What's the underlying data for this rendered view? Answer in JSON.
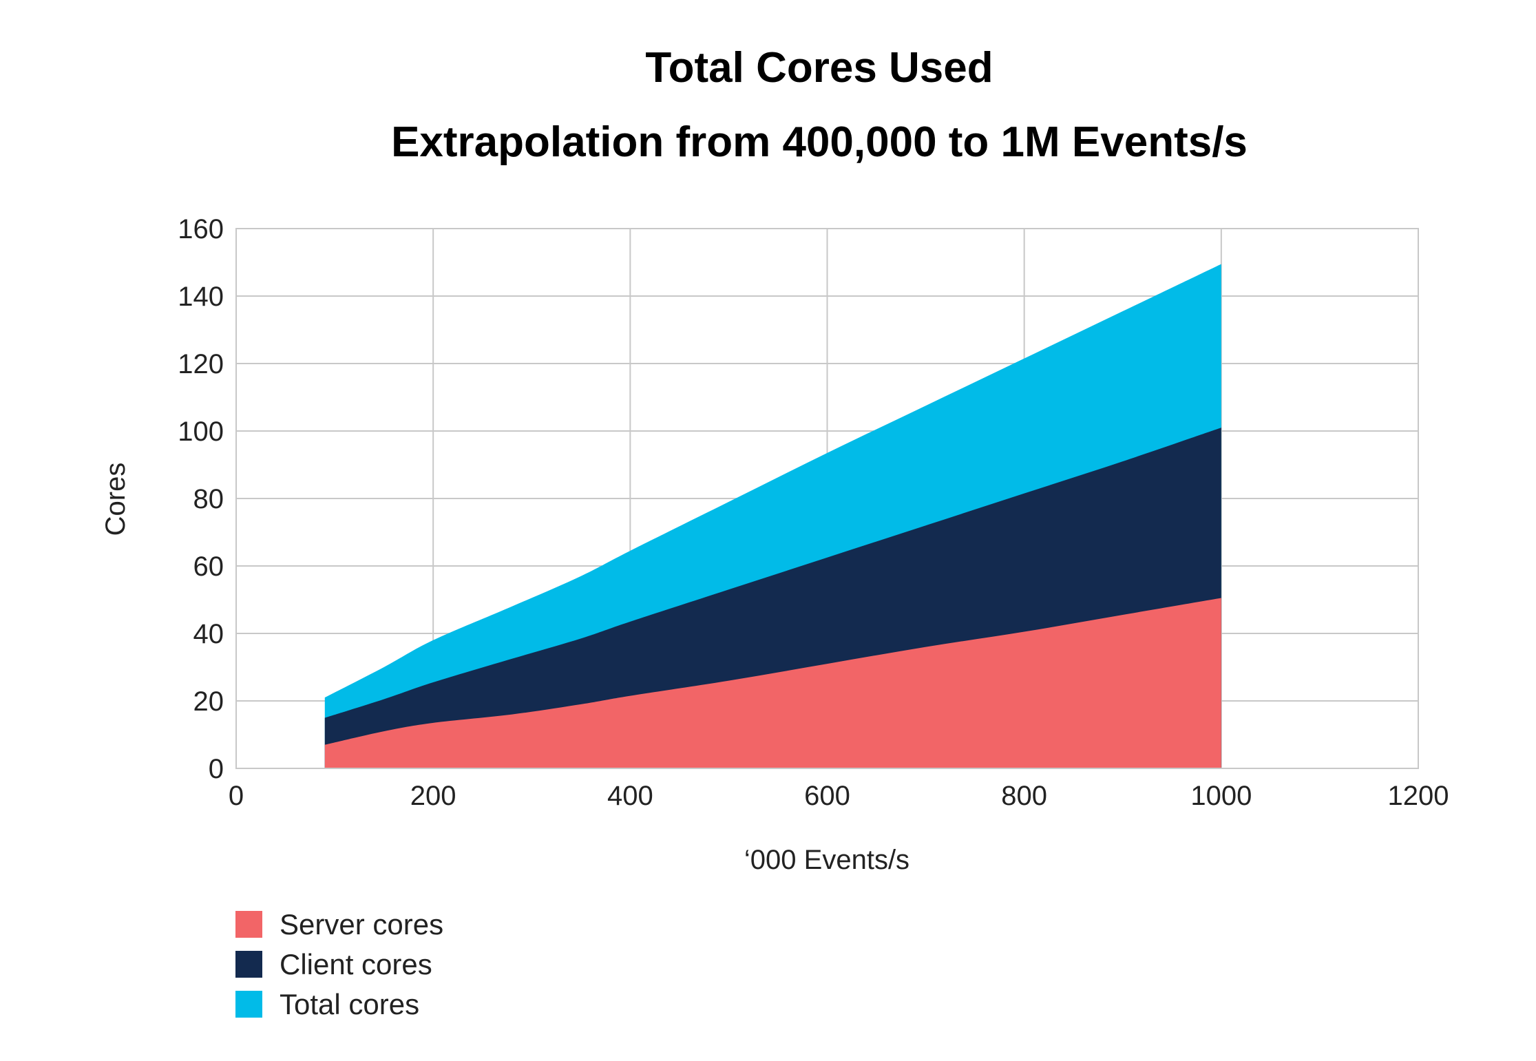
{
  "chart_data": {
    "type": "area",
    "title": "Total Cores Used",
    "subtitle": "Extrapolation from 400,000 to 1M Events/s",
    "xlabel": "‘000 Events/s",
    "ylabel": "Cores",
    "xlim": [
      0,
      1200
    ],
    "ylim": [
      0,
      160
    ],
    "xticks": [
      "0",
      "200",
      "400",
      "600",
      "800",
      "1000",
      "1200"
    ],
    "yticks": [
      "0",
      "20",
      "40",
      "60",
      "80",
      "100",
      "120",
      "140",
      "160"
    ],
    "grid": true,
    "legend_position": "bottom-left",
    "stacked": true,
    "series": [
      {
        "name": "Server cores",
        "color": "#f26567",
        "points": [
          [
            90,
            7
          ],
          [
            150,
            11
          ],
          [
            200,
            13.5
          ],
          [
            280,
            16
          ],
          [
            350,
            19
          ],
          [
            400,
            21.5
          ],
          [
            500,
            26
          ],
          [
            600,
            31
          ],
          [
            700,
            36
          ],
          [
            800,
            40.5
          ],
          [
            900,
            45.5
          ],
          [
            1000,
            50.5
          ]
        ]
      },
      {
        "name": "Client cores",
        "color": "#132a4f",
        "points": [
          [
            90,
            15
          ],
          [
            150,
            20.5
          ],
          [
            200,
            25.5
          ],
          [
            280,
            32.5
          ],
          [
            350,
            38.5
          ],
          [
            400,
            43.5
          ],
          [
            500,
            53
          ],
          [
            600,
            62.5
          ],
          [
            700,
            72
          ],
          [
            800,
            81.5
          ],
          [
            900,
            91
          ],
          [
            1000,
            101
          ]
        ]
      },
      {
        "name": "Total cores",
        "color": "#01bbe8",
        "points": [
          [
            90,
            21
          ],
          [
            150,
            30
          ],
          [
            200,
            38
          ],
          [
            280,
            48
          ],
          [
            350,
            57
          ],
          [
            400,
            64.5
          ],
          [
            500,
            79
          ],
          [
            600,
            93.5
          ],
          [
            700,
            107.5
          ],
          [
            800,
            121.5
          ],
          [
            900,
            135.5
          ],
          [
            1000,
            149.5
          ]
        ]
      }
    ]
  }
}
